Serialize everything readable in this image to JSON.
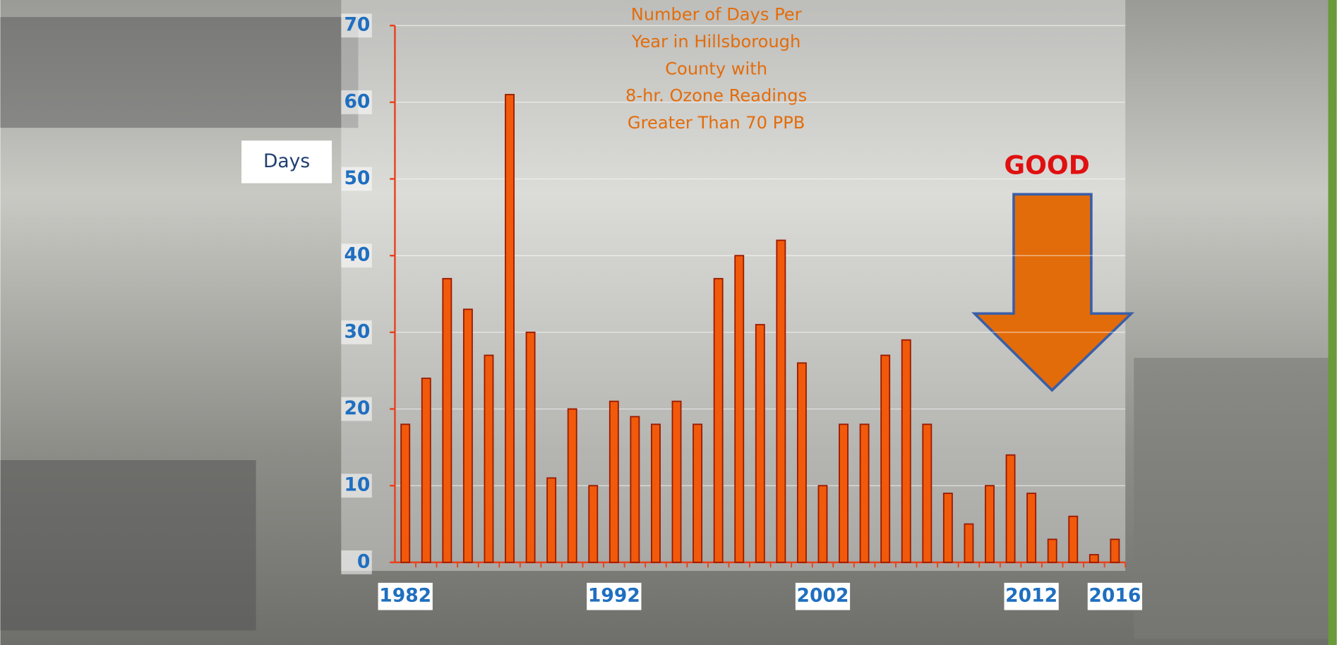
{
  "chart_data": {
    "type": "bar",
    "title_lines": [
      "Number of Days Per",
      "Year in Hillsborough",
      "County with",
      "8-hr. Ozone Readings",
      "Greater Than 70 PPB"
    ],
    "y_label": "Days",
    "annotation": "GOOD",
    "categories": [
      "1982",
      null,
      null,
      null,
      null,
      null,
      null,
      null,
      null,
      null,
      "1992",
      null,
      null,
      null,
      null,
      null,
      null,
      null,
      null,
      null,
      "2002",
      null,
      null,
      null,
      null,
      null,
      null,
      null,
      null,
      null,
      "2012",
      null,
      null,
      null,
      "2016"
    ],
    "values": [
      18,
      24,
      37,
      33,
      27,
      61,
      30,
      11,
      20,
      10,
      21,
      19,
      18,
      21,
      18,
      37,
      40,
      31,
      42,
      26,
      10,
      18,
      18,
      27,
      29,
      18,
      9,
      5,
      10,
      14,
      9,
      3,
      6,
      1,
      3
    ],
    "color": "#f05a0a",
    "ylim": [
      0,
      70
    ],
    "yticks": [
      0,
      10,
      20,
      30,
      40,
      50,
      60,
      70
    ],
    "grid": true
  }
}
